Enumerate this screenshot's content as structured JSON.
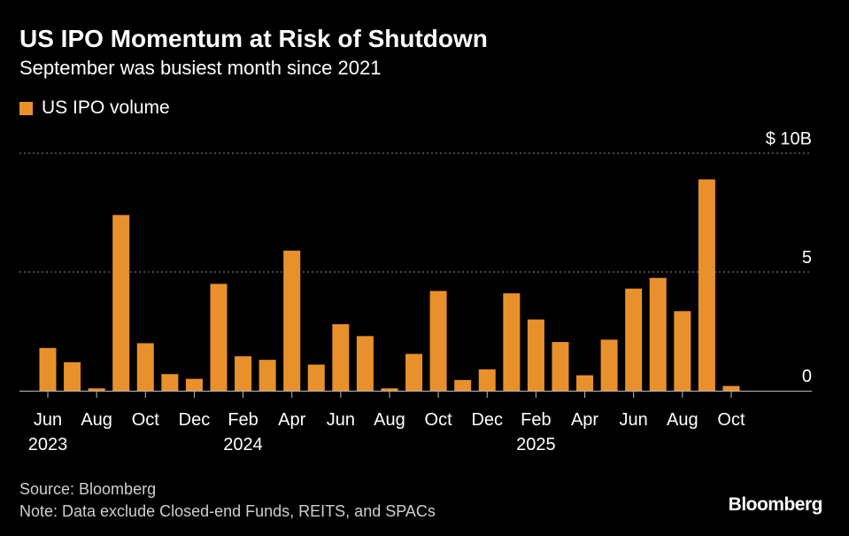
{
  "title": "US IPO Momentum at Risk of Shutdown",
  "subtitle": "September was busiest month since 2021",
  "legend": {
    "label": "US IPO volume",
    "color": "#e8912c"
  },
  "footer": {
    "source": "Source: Bloomberg",
    "note": "Note: Data exclude Closed-end Funds, REITS, and SPACs"
  },
  "brand": "Bloomberg",
  "chart_data": {
    "type": "bar",
    "title": "US IPO Momentum at Risk of Shutdown",
    "subtitle": "September was busiest month since 2021",
    "xlabel": "",
    "ylabel": "",
    "ylim": [
      0,
      10
    ],
    "yticks": [
      {
        "value": 0,
        "label": "0"
      },
      {
        "value": 5,
        "label": "5"
      },
      {
        "value": 10,
        "label": "$ 10B"
      }
    ],
    "grid": true,
    "bar_color": "#e8912c",
    "categories": [
      "2023-06",
      "2023-07",
      "2023-08",
      "2023-09",
      "2023-10",
      "2023-11",
      "2023-12",
      "2024-01",
      "2024-02",
      "2024-03",
      "2024-04",
      "2024-05",
      "2024-06",
      "2024-07",
      "2024-08",
      "2024-09",
      "2024-10",
      "2024-11",
      "2024-12",
      "2025-01",
      "2025-02",
      "2025-03",
      "2025-04",
      "2025-05",
      "2025-06",
      "2025-07",
      "2025-08",
      "2025-09",
      "2025-10"
    ],
    "series": [
      {
        "name": "US IPO volume",
        "values": [
          1.8,
          1.2,
          0.1,
          7.4,
          2.0,
          0.7,
          0.5,
          4.5,
          1.45,
          1.3,
          5.9,
          1.1,
          2.8,
          2.3,
          0.1,
          1.55,
          4.2,
          0.45,
          0.9,
          4.1,
          3.0,
          2.05,
          0.65,
          2.15,
          4.3,
          4.75,
          3.35,
          8.9,
          0.2
        ]
      }
    ],
    "xtick_labels": [
      {
        "index": 0,
        "label": "Jun",
        "year": "2023"
      },
      {
        "index": 2,
        "label": "Aug",
        "year": ""
      },
      {
        "index": 4,
        "label": "Oct",
        "year": ""
      },
      {
        "index": 6,
        "label": "Dec",
        "year": ""
      },
      {
        "index": 8,
        "label": "Feb",
        "year": "2024"
      },
      {
        "index": 10,
        "label": "Apr",
        "year": ""
      },
      {
        "index": 12,
        "label": "Jun",
        "year": ""
      },
      {
        "index": 14,
        "label": "Aug",
        "year": ""
      },
      {
        "index": 16,
        "label": "Oct",
        "year": ""
      },
      {
        "index": 18,
        "label": "Dec",
        "year": ""
      },
      {
        "index": 20,
        "label": "Feb",
        "year": "2025"
      },
      {
        "index": 22,
        "label": "Apr",
        "year": ""
      },
      {
        "index": 24,
        "label": "Jun",
        "year": ""
      },
      {
        "index": 26,
        "label": "Aug",
        "year": ""
      },
      {
        "index": 28,
        "label": "Oct",
        "year": ""
      }
    ]
  }
}
